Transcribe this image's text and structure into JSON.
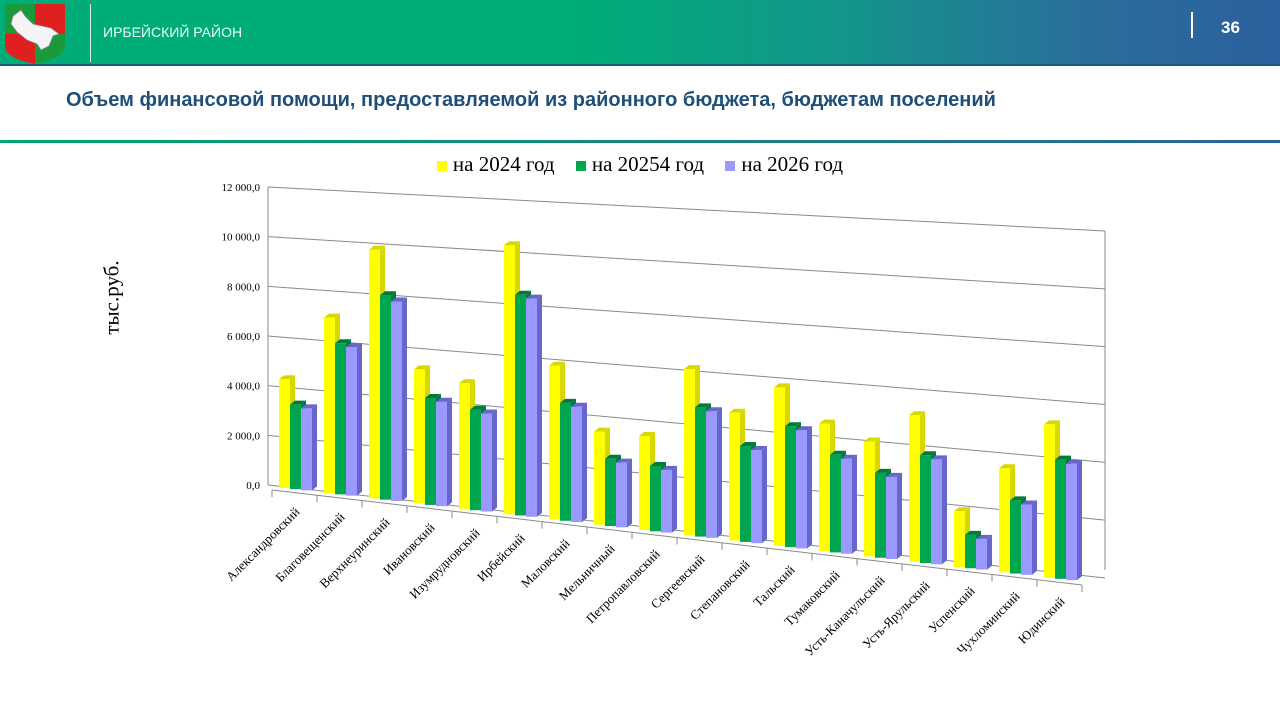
{
  "header": {
    "region": "ИРБЕЙСКИЙ РАЙОН",
    "page_number": "36"
  },
  "title": "Объем финансовой помощи, предоставляемой из районного бюджета, бюджетам поселений",
  "colors": {
    "y2024": "#ffff00",
    "y2025": "#00a550",
    "y2026": "#9999ff",
    "title": "#1f4e79"
  },
  "chart_data": {
    "type": "bar",
    "title": "",
    "xlabel": "",
    "ylabel": "тыс.руб.",
    "ylim": [
      0,
      12000
    ],
    "yticks": [
      "0,0",
      "2 000,0",
      "4 000,0",
      "6 000,0",
      "8 000,0",
      "10 000,0",
      "12 000,0"
    ],
    "legend_position": "top",
    "grid": true,
    "categories": [
      "Александровский",
      "Благовещенский",
      "Верхнеуринский",
      "Ивановский",
      "Изумрудновский",
      "Ирбейский",
      "Маловский",
      "Мельничный",
      "Петропавловский",
      "Сергеевский",
      "Степановский",
      "Тальский",
      "Тумаковский",
      "Усть-Каначульский",
      "Усть-Ярульский",
      "Успенский",
      "Чухломинский",
      "Юдинский"
    ],
    "series": [
      {
        "name": "на 2024 год",
        "values": [
          4500,
          7200,
          10100,
          5400,
          5000,
          10600,
          6000,
          3600,
          3600,
          6300,
          4800,
          5900,
          4700,
          4200,
          5300,
          2000,
          3700,
          5400
        ]
      },
      {
        "name": "на 20254 год",
        "values": [
          3500,
          6200,
          8300,
          4300,
          4000,
          8700,
          4600,
          2600,
          2500,
          4900,
          3600,
          4500,
          3600,
          3100,
          3900,
          1200,
          2600,
          4200
        ]
      },
      {
        "name": "на 2026 год",
        "values": [
          3400,
          6100,
          8100,
          4200,
          3900,
          8600,
          4500,
          2500,
          2400,
          4800,
          3500,
          4400,
          3500,
          3000,
          3800,
          1100,
          2500,
          4100
        ]
      }
    ]
  }
}
